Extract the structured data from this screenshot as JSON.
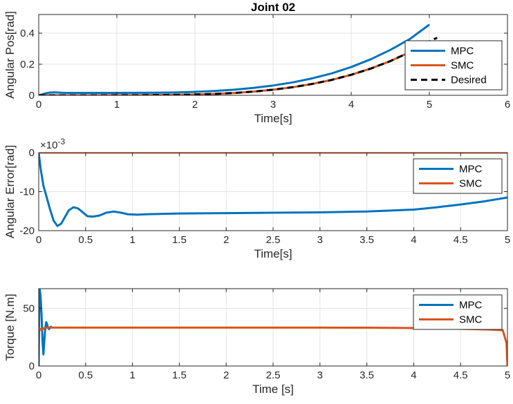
{
  "chart_data": [
    {
      "type": "line",
      "title": "Joint 02",
      "xlabel": "Time[s]",
      "ylabel": "Angular Pos[rad]",
      "xlim": [
        0,
        6
      ],
      "ylim": [
        0,
        0.52
      ],
      "xticks": [
        0,
        1,
        2,
        3,
        4,
        5,
        6
      ],
      "xtick_labels": [
        "0",
        "1",
        "2",
        "3",
        "4",
        "5",
        "6"
      ],
      "yticks": [
        0,
        0.2,
        0.4
      ],
      "ytick_labels": [
        "0",
        "0.2",
        "0.4"
      ],
      "grid": true,
      "legend": "bottom-right",
      "series": [
        {
          "name": "MPC",
          "color": "#0072BD",
          "style": "solid",
          "x": [
            0,
            0.05,
            0.1,
            0.15,
            0.2,
            0.25,
            0.3,
            0.4,
            0.5,
            0.75,
            1,
            1.25,
            1.5,
            1.75,
            2,
            2.25,
            2.5,
            2.75,
            3,
            3.25,
            3.5,
            3.75,
            4,
            4.25,
            4.5,
            4.75,
            5
          ],
          "y": [
            0,
            0.007,
            0.014,
            0.018,
            0.019,
            0.018,
            0.016,
            0.0155,
            0.0155,
            0.0157,
            0.0158,
            0.0162,
            0.0168,
            0.0185,
            0.022,
            0.028,
            0.036,
            0.048,
            0.063,
            0.083,
            0.109,
            0.141,
            0.182,
            0.232,
            0.292,
            0.362,
            0.455
          ]
        },
        {
          "name": "SMC",
          "color": "#D95319",
          "style": "solid",
          "x": [
            0,
            0.5,
            1,
            1.25,
            1.5,
            1.75,
            2,
            2.25,
            2.5,
            2.75,
            3,
            3.25,
            3.5,
            3.75,
            4,
            4.25,
            4.5,
            4.75,
            5
          ],
          "y": [
            0,
            0,
            0.0003,
            0.0007,
            0.0015,
            0.003,
            0.005,
            0.009,
            0.015,
            0.024,
            0.036,
            0.052,
            0.073,
            0.099,
            0.132,
            0.172,
            0.22,
            0.278,
            0.348
          ]
        },
        {
          "name": "Desired",
          "color": "#000000",
          "style": "dashed",
          "x": [
            0,
            0.5,
            1,
            1.25,
            1.5,
            1.75,
            2,
            2.25,
            2.5,
            2.75,
            3,
            3.25,
            3.5,
            3.75,
            4,
            4.25,
            4.5,
            4.75,
            5,
            5.1
          ],
          "y": [
            0,
            0,
            0.0003,
            0.0007,
            0.0015,
            0.003,
            0.005,
            0.009,
            0.015,
            0.024,
            0.036,
            0.052,
            0.073,
            0.099,
            0.132,
            0.172,
            0.22,
            0.278,
            0.348,
            0.37
          ]
        }
      ]
    },
    {
      "type": "line",
      "title": "",
      "xlabel": "Time[s]",
      "ylabel": "Angular Error[rad]",
      "exponent_label": "×10",
      "exponent_power": "-3",
      "xlim": [
        0,
        5
      ],
      "ylim": [
        -20,
        0
      ],
      "xticks": [
        0,
        0.5,
        1,
        1.5,
        2,
        2.5,
        3,
        3.5,
        4,
        4.5,
        5
      ],
      "xtick_labels": [
        "0",
        "0.5",
        "1",
        "1.5",
        "2",
        "2.5",
        "3",
        "3.5",
        "4",
        "4.5",
        "5"
      ],
      "yticks": [
        -20,
        -10,
        0
      ],
      "ytick_labels": [
        "-20",
        "-10",
        "0"
      ],
      "grid": true,
      "legend": "top-right",
      "series": [
        {
          "name": "MPC",
          "color": "#0072BD",
          "style": "solid",
          "x": [
            0,
            0.02,
            0.05,
            0.08,
            0.12,
            0.16,
            0.2,
            0.24,
            0.28,
            0.32,
            0.37,
            0.42,
            0.47,
            0.52,
            0.58,
            0.65,
            0.72,
            0.8,
            0.88,
            0.95,
            1.05,
            1.15,
            1.3,
            1.5,
            2,
            2.5,
            3,
            3.5,
            4,
            4.25,
            4.5,
            4.75,
            5
          ],
          "y": [
            0,
            -4,
            -8.5,
            -11,
            -14.5,
            -17.5,
            -18.8,
            -18.2,
            -16.5,
            -14.8,
            -14,
            -14.3,
            -15.3,
            -16.3,
            -16.4,
            -16.1,
            -15.4,
            -15.1,
            -15.4,
            -15.8,
            -15.9,
            -15.8,
            -15.7,
            -15.6,
            -15.5,
            -15.4,
            -15.3,
            -15.1,
            -14.6,
            -14,
            -13.3,
            -12.5,
            -11.5
          ]
        },
        {
          "name": "SMC",
          "color": "#D95319",
          "style": "solid",
          "x": [
            0,
            1,
            2,
            3,
            4,
            5
          ],
          "y": [
            0,
            0,
            0,
            0,
            0,
            0
          ]
        }
      ]
    },
    {
      "type": "line",
      "title": "",
      "xlabel": "Time [s]",
      "ylabel": "Torque [N.m]",
      "xlim": [
        0,
        5
      ],
      "ylim": [
        0,
        67
      ],
      "xticks": [
        0,
        0.5,
        1,
        1.5,
        2,
        2.5,
        3,
        3.5,
        4,
        4.5,
        5
      ],
      "xtick_labels": [
        "0",
        "0.5",
        "1",
        "1.5",
        "2",
        "2.5",
        "3",
        "3.5",
        "4",
        "4.5",
        "5"
      ],
      "yticks": [
        0,
        50
      ],
      "ytick_labels": [
        "0",
        "50"
      ],
      "grid": true,
      "legend": "top-right",
      "series": [
        {
          "name": "MPC",
          "color": "#0072BD",
          "style": "solid",
          "x": [
            0,
            0.005,
            0.012,
            0.02,
            0.03,
            0.04,
            0.05,
            0.06,
            0.07,
            0.08,
            0.09,
            0.1,
            0.11,
            0.12,
            0.13,
            0.14
          ],
          "y": [
            0,
            45,
            66,
            60,
            45,
            22,
            10,
            22,
            33,
            38,
            36,
            33,
            32,
            33,
            34,
            33
          ]
        },
        {
          "name": "SMC",
          "color": "#D95319",
          "style": "solid",
          "x": [
            0,
            0.03,
            0.06,
            0.1,
            1,
            2,
            3,
            3.5,
            4,
            4.5,
            4.8,
            4.95,
            4.99,
            5
          ],
          "y": [
            33,
            31,
            33,
            33.3,
            33.3,
            33.3,
            33.3,
            33.2,
            32.9,
            32.2,
            31.6,
            31,
            20,
            0
          ]
        }
      ]
    }
  ]
}
